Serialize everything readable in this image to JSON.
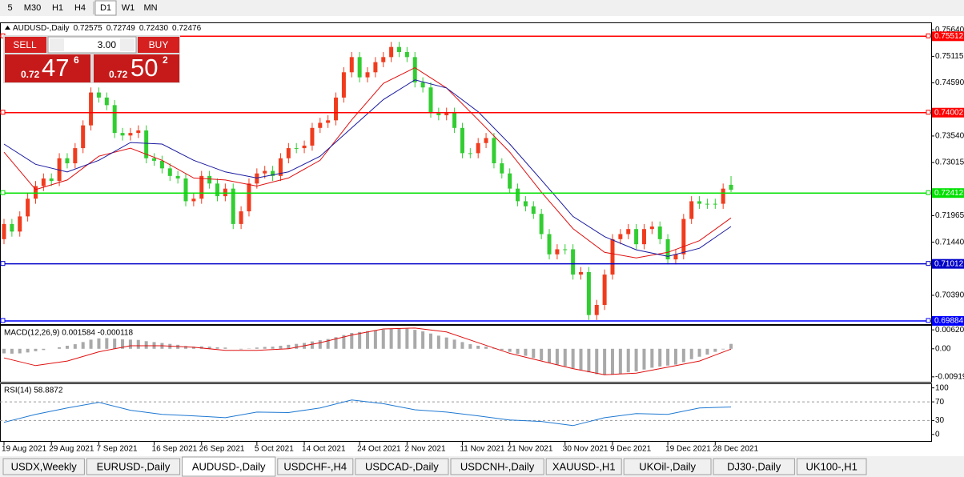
{
  "toolbar": {
    "timeframes": [
      "5",
      "M30",
      "H1",
      "H4",
      "D1",
      "W1",
      "MN"
    ],
    "active": 4
  },
  "chart_header": {
    "symbol": "AUDUSD-,Daily",
    "ohlc": [
      "0.72575",
      "0.72749",
      "0.72430",
      "0.72476"
    ]
  },
  "trade_panel": {
    "sell": "SELL",
    "buy": "BUY",
    "lots": "3.00",
    "sell_price": {
      "prefix": "0.72",
      "big": "47",
      "pip": "6"
    },
    "buy_price": {
      "prefix": "0.72",
      "big": "50",
      "pip": "2"
    }
  },
  "chart_data": [
    {
      "type": "candlestick",
      "categories": [
        "19 Aug 2021",
        null,
        null,
        null,
        null,
        null,
        "29 Aug 2021",
        null,
        null,
        null,
        null,
        null,
        "7 Sep 2021",
        null,
        null,
        null,
        null,
        null,
        null,
        "16 Sep 2021",
        null,
        null,
        null,
        null,
        null,
        "26 Sep 2021",
        null,
        null,
        null,
        null,
        null,
        null,
        "5 Oct 2021",
        null,
        null,
        null,
        null,
        null,
        "14 Oct 2021",
        null,
        null,
        null,
        null,
        null,
        null,
        "24 Oct 2021",
        null,
        null,
        null,
        null,
        null,
        "2 Nov 2021",
        null,
        null,
        null,
        null,
        null,
        null,
        "11 Nov 2021",
        null,
        null,
        null,
        null,
        null,
        "21 Nov 2021",
        null,
        null,
        null,
        null,
        null,
        null,
        "30 Nov 2021",
        null,
        null,
        null,
        null,
        null,
        "9 Dec 2021",
        null,
        null,
        null,
        null,
        null,
        null,
        "19 Dec 2021",
        null,
        null,
        null,
        null,
        null,
        "28 Dec 2021",
        null,
        null
      ],
      "open": [
        0.715,
        0.718,
        0.7165,
        0.7195,
        0.723,
        0.7255,
        0.727,
        0.7265,
        0.731,
        0.73,
        0.733,
        0.7375,
        0.744,
        0.743,
        0.7415,
        0.736,
        0.7355,
        0.736,
        0.7365,
        0.731,
        0.7305,
        0.729,
        0.7275,
        0.727,
        0.7225,
        0.723,
        0.7275,
        0.726,
        0.7235,
        0.725,
        0.718,
        0.7205,
        0.726,
        0.728,
        0.7285,
        0.7275,
        0.731,
        0.733,
        0.733,
        0.7335,
        0.737,
        0.738,
        0.7385,
        0.743,
        0.748,
        0.751,
        0.747,
        0.748,
        0.75,
        0.751,
        0.753,
        0.752,
        0.751,
        0.746,
        0.745,
        0.74,
        0.7395,
        0.74,
        0.737,
        0.732,
        0.732,
        0.734,
        0.735,
        0.73,
        0.728,
        0.725,
        0.7225,
        0.7215,
        0.72,
        0.716,
        0.712,
        0.713,
        0.713,
        0.708,
        0.7085,
        0.7,
        0.702,
        0.708,
        0.715,
        0.716,
        0.717,
        0.714,
        0.717,
        0.7175,
        0.715,
        0.711,
        0.712,
        0.719,
        0.7225,
        0.722,
        0.722,
        0.722,
        0.72575
      ],
      "high": [
        0.719,
        0.719,
        0.7205,
        0.724,
        0.7265,
        0.728,
        0.728,
        0.732,
        0.732,
        0.734,
        0.7385,
        0.745,
        0.745,
        0.744,
        0.7425,
        0.737,
        0.737,
        0.7375,
        0.7375,
        0.732,
        0.7315,
        0.73,
        0.7285,
        0.728,
        0.724,
        0.7285,
        0.7285,
        0.727,
        0.726,
        0.726,
        0.7215,
        0.727,
        0.729,
        0.7295,
        0.7295,
        0.732,
        0.734,
        0.734,
        0.7345,
        0.738,
        0.739,
        0.7395,
        0.744,
        0.749,
        0.752,
        0.752,
        0.749,
        0.751,
        0.752,
        0.754,
        0.754,
        0.753,
        0.752,
        0.747,
        0.746,
        0.741,
        0.741,
        0.741,
        0.738,
        0.733,
        0.735,
        0.736,
        0.736,
        0.731,
        0.729,
        0.726,
        0.7235,
        0.7225,
        0.721,
        0.717,
        0.714,
        0.714,
        0.714,
        0.7095,
        0.7095,
        0.703,
        0.709,
        0.716,
        0.717,
        0.718,
        0.718,
        0.718,
        0.7185,
        0.7185,
        0.716,
        0.713,
        0.72,
        0.7235,
        0.7235,
        0.723,
        0.723,
        0.726,
        0.72749
      ],
      "low": [
        0.714,
        0.7155,
        0.7155,
        0.7185,
        0.722,
        0.7245,
        0.7255,
        0.7255,
        0.729,
        0.729,
        0.732,
        0.7365,
        0.742,
        0.7405,
        0.735,
        0.7345,
        0.7345,
        0.735,
        0.73,
        0.7295,
        0.728,
        0.7265,
        0.726,
        0.7215,
        0.7215,
        0.722,
        0.725,
        0.7225,
        0.7225,
        0.717,
        0.717,
        0.7195,
        0.725,
        0.727,
        0.7265,
        0.7265,
        0.73,
        0.732,
        0.732,
        0.7325,
        0.736,
        0.737,
        0.7375,
        0.742,
        0.747,
        0.746,
        0.746,
        0.747,
        0.749,
        0.75,
        0.751,
        0.75,
        0.745,
        0.744,
        0.739,
        0.7385,
        0.7385,
        0.736,
        0.731,
        0.731,
        0.731,
        0.733,
        0.729,
        0.727,
        0.724,
        0.7215,
        0.7205,
        0.719,
        0.715,
        0.711,
        0.711,
        0.712,
        0.707,
        0.707,
        0.699,
        0.699,
        0.701,
        0.707,
        0.714,
        0.715,
        0.713,
        0.713,
        0.716,
        0.714,
        0.71,
        0.71,
        0.711,
        0.718,
        0.721,
        0.721,
        0.721,
        0.721,
        0.7243
      ],
      "close": [
        0.718,
        0.7165,
        0.7195,
        0.723,
        0.7255,
        0.727,
        0.7265,
        0.731,
        0.73,
        0.733,
        0.7375,
        0.744,
        0.743,
        0.7415,
        0.736,
        0.7355,
        0.736,
        0.7365,
        0.731,
        0.7305,
        0.729,
        0.7275,
        0.727,
        0.7225,
        0.723,
        0.7275,
        0.726,
        0.7235,
        0.725,
        0.718,
        0.7205,
        0.726,
        0.728,
        0.7285,
        0.7275,
        0.731,
        0.733,
        0.733,
        0.7335,
        0.737,
        0.738,
        0.7385,
        0.743,
        0.748,
        0.751,
        0.747,
        0.748,
        0.75,
        0.751,
        0.753,
        0.752,
        0.751,
        0.746,
        0.745,
        0.74,
        0.7395,
        0.74,
        0.737,
        0.732,
        0.732,
        0.734,
        0.735,
        0.73,
        0.728,
        0.725,
        0.7225,
        0.7215,
        0.72,
        0.716,
        0.712,
        0.713,
        0.713,
        0.708,
        0.7085,
        0.7,
        0.702,
        0.708,
        0.715,
        0.716,
        0.717,
        0.714,
        0.717,
        0.7175,
        0.715,
        0.711,
        0.712,
        0.719,
        0.7225,
        0.722,
        0.722,
        0.722,
        0.725,
        0.72476
      ],
      "up_color": "#f03c1e",
      "down_color": "#32cd32",
      "lines": [
        {
          "color": "#e01010",
          "x": [
            0,
            4,
            8,
            12,
            16,
            20,
            24,
            28,
            32,
            36,
            40,
            44,
            48,
            52,
            56,
            60,
            64,
            68,
            72,
            76,
            80,
            84,
            88,
            92
          ],
          "values": [
            0.7322,
            0.7248,
            0.7267,
            0.7314,
            0.733,
            0.7306,
            0.7271,
            0.7267,
            0.7255,
            0.7271,
            0.7306,
            0.7386,
            0.7458,
            0.7489,
            0.7449,
            0.7386,
            0.7322,
            0.7243,
            0.7171,
            0.7124,
            0.7113,
            0.7124,
            0.7147,
            0.7192
          ]
        },
        {
          "color": "#1a1aa0",
          "x": [
            0,
            4,
            8,
            12,
            16,
            20,
            24,
            28,
            32,
            36,
            40,
            44,
            48,
            52,
            56,
            60,
            64,
            68,
            72,
            76,
            80,
            84,
            88,
            92
          ],
          "values": [
            0.7338,
            0.7298,
            0.7283,
            0.7306,
            0.7341,
            0.7338,
            0.7306,
            0.7283,
            0.7271,
            0.7283,
            0.7314,
            0.737,
            0.7426,
            0.7465,
            0.7449,
            0.7402,
            0.7338,
            0.7267,
            0.7195,
            0.7155,
            0.7129,
            0.7116,
            0.7132,
            0.7175
          ]
        }
      ],
      "levels": [
        {
          "value": 0.75512,
          "color": "#ff0000"
        },
        {
          "value": 0.74002,
          "color": "#ff0000"
        },
        {
          "value": 0.72412,
          "color": "#00e000"
        },
        {
          "value": 0.71012,
          "color": "#0000c8"
        },
        {
          "value": 0.69884,
          "color": "#0000ff"
        }
      ],
      "ylim": [
        0.6982,
        0.7577
      ],
      "yticks": [
        {
          "value": 0.7564,
          "label": "0.75640"
        },
        0.75115,
        {
          "value": 0.7459,
          "label": "0.74590"
        },
        {
          "value": 0.7354,
          "label": "0.73540"
        },
        0.73015,
        0.71965,
        {
          "value": 0.7144,
          "label": "0.71440"
        },
        {
          "value": 0.7039,
          "label": "0.70390"
        }
      ]
    },
    {
      "type": "bar",
      "title": "MACD(12,26,9) 0.001584 -0.000118",
      "color": "#a9a9a9",
      "values": [
        -0.0015,
        -0.0016,
        -0.0015,
        -0.0012,
        -0.0008,
        -0.0004,
        0.0,
        0.0005,
        0.001,
        0.0015,
        0.0022,
        0.003,
        0.0034,
        0.0035,
        0.0033,
        0.0031,
        0.003,
        0.0029,
        0.0025,
        0.0022,
        0.0019,
        0.0016,
        0.0013,
        0.0009,
        0.0007,
        0.0008,
        0.0007,
        0.0005,
        0.0004,
        0.0,
        -0.0002,
        0.0001,
        0.0004,
        0.0006,
        0.0007,
        0.001,
        0.0013,
        0.0016,
        0.0019,
        0.0024,
        0.0028,
        0.0032,
        0.0038,
        0.0045,
        0.0052,
        0.0055,
        0.0058,
        0.0061,
        0.0063,
        0.0066,
        0.0067,
        0.0066,
        0.0062,
        0.0057,
        0.005,
        0.0043,
        0.0037,
        0.003,
        0.0022,
        0.0015,
        0.001,
        0.0007,
        0.0002,
        -0.0004,
        -0.001,
        -0.0017,
        -0.0023,
        -0.003,
        -0.0038,
        -0.0046,
        -0.0052,
        -0.0057,
        -0.0064,
        -0.0069,
        -0.0077,
        -0.0083,
        -0.0086,
        -0.0085,
        -0.0082,
        -0.0077,
        -0.0074,
        -0.0068,
        -0.0062,
        -0.0058,
        -0.0055,
        -0.0052,
        -0.0044,
        -0.0034,
        -0.0026,
        -0.0019,
        -0.001,
        -0.0002,
        0.0016
      ],
      "signal": {
        "color": "#e01010",
        "x": [
          0,
          4,
          8,
          12,
          16,
          20,
          24,
          28,
          32,
          36,
          40,
          44,
          48,
          52,
          56,
          60,
          64,
          68,
          72,
          76,
          80,
          84,
          88,
          92
        ],
        "values": [
          -0.003,
          -0.0055,
          -0.004,
          -0.001,
          0.001,
          0.001,
          0.0005,
          -0.0005,
          -0.0005,
          0.0,
          0.002,
          0.0045,
          0.0065,
          0.0068,
          0.0055,
          0.002,
          -0.0015,
          -0.004,
          -0.0065,
          -0.0085,
          -0.008,
          -0.006,
          -0.004,
          -0.0001
        ]
      },
      "ylim": [
        -0.0108,
        0.00755
      ],
      "yticks": [
        0.006201,
        {
          "value": 0,
          "label": "0.00"
        },
        -0.00919
      ]
    },
    {
      "type": "line",
      "title": "RSI(14) 58.8872",
      "color": "#1e78d2",
      "x": [
        0,
        4,
        8,
        12,
        16,
        20,
        24,
        28,
        32,
        36,
        40,
        44,
        48,
        52,
        56,
        60,
        64,
        68,
        72,
        76,
        80,
        84,
        88,
        92
      ],
      "values": [
        26,
        43,
        57,
        69,
        52,
        43,
        40,
        36,
        48,
        47,
        57,
        74,
        66,
        53,
        48,
        40,
        31,
        28,
        19,
        36,
        45,
        43,
        57,
        59
      ],
      "levels": [
        70,
        30
      ],
      "ylim": [
        -14,
        108
      ],
      "yticks": [
        100,
        70,
        30,
        0
      ]
    }
  ],
  "tabs": [
    "USDX,Weekly",
    "EURUSD-,Daily",
    "AUDUSD-,Daily",
    "USDCHF-,H4",
    "USDCAD-,Daily",
    "USDCNH-,Daily",
    "XAUUSD-,H1",
    "UKOil-,Daily",
    "DJ30-,Daily",
    "UK100-,H1"
  ],
  "active_tab": 2
}
